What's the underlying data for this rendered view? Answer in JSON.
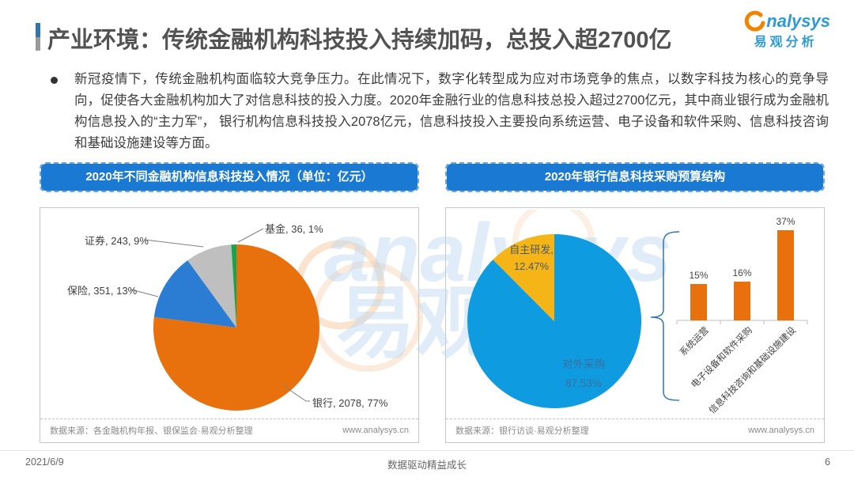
{
  "header": {
    "title": "产业环境：传统金融机构科技投入持续加码，总投入超2700亿",
    "logo": {
      "brand_text": "nalysys",
      "cn": "易观分析"
    }
  },
  "bullet_text": "新冠疫情下，传统金融机构面临较大竞争压力。在此情况下，数字化转型成为应对市场竞争的焦点，以数字科技为核心的竞争导向，促使各大金融机构加大了对信息科技的投入力度。2020年金融行业的信息科技总投入超过2700亿元，其中商业银行成为金融机构信息投入的“主力军”， 银行机构信息科技投入2078亿元，信息科技投入主要投向系统运营、电子设备和软件采购、信息科技咨询和基础设施建设等方面。",
  "panels": {
    "left": {
      "header": "2020年不同金融机构信息科技投入情况（单位：亿元）",
      "source": "数据来源：各金融机构年报、银保监会·易观分析整理",
      "site": "www.analysys.cn"
    },
    "right": {
      "header": "2020年银行信息科技采购预算结构",
      "source": "数据来源：银行访谈·易观分析整理",
      "site": "www.analysys.cn"
    }
  },
  "footer": {
    "date": "2021/6/9",
    "slogan": "数据驱动精益成长",
    "page": "6"
  },
  "chart_data": [
    {
      "type": "pie",
      "title": "2020年不同金融机构信息科技投入情况（单位：亿元）",
      "unit": "亿元",
      "slices": [
        {
          "label": "银行",
          "value": 2078,
          "pct": 77,
          "color": "#E8710D",
          "display": "银行, 2078, 77%"
        },
        {
          "label": "保险",
          "value": 351,
          "pct": 13,
          "color": "#2B7CD3",
          "display": "保险, 351, 13%"
        },
        {
          "label": "证券",
          "value": 243,
          "pct": 9,
          "color": "#BFBFBF",
          "display": "证券, 243, 9%"
        },
        {
          "label": "基金",
          "value": 36,
          "pct": 1,
          "color": "#17A44B",
          "display": "基金, 36, 1%"
        }
      ]
    },
    {
      "type": "pie",
      "title": "2020年银行信息科技采购预算结构",
      "slices": [
        {
          "label": "对外采购",
          "pct": 87.53,
          "color": "#0F9BE0",
          "display_lines": [
            "对外采购",
            "87.53%"
          ]
        },
        {
          "label": "自主研发",
          "pct": 12.47,
          "color": "#F5B517",
          "display_lines": [
            "自主研发,",
            "12.47%"
          ]
        }
      ]
    },
    {
      "type": "bar",
      "title": "2020年银行信息科技采购预算结构-对外采购明细",
      "categories": [
        "系统运营",
        "电子设备和软件采购",
        "信息科技咨询和基础设施建设"
      ],
      "values": [
        15,
        16,
        37
      ],
      "value_labels": [
        "15%",
        "16%",
        "37%"
      ],
      "bar_color": "#E8710D",
      "ylim": [
        0,
        40
      ],
      "grid": false,
      "legend": "none"
    }
  ]
}
